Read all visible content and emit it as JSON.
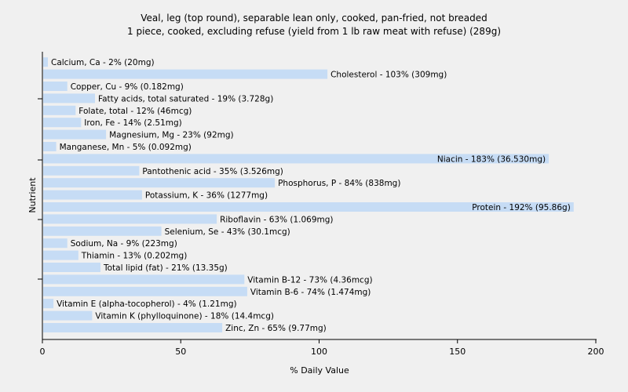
{
  "chart_data": {
    "type": "bar",
    "orientation": "horizontal",
    "title": "Veal, leg (top round), separable lean only, cooked, pan-fried, not breaded",
    "subtitle": "1 piece, cooked, excluding refuse (yield from 1 lb raw meat with refuse) (289g)",
    "xlabel": "% Daily Value",
    "ylabel": "Nutrient",
    "xlim": [
      0,
      200
    ],
    "xticks": [
      "0",
      "50",
      "100",
      "150",
      "200"
    ],
    "grid": false,
    "bar_color": "#c6dcf5",
    "categories": [
      "Calcium, Ca",
      "Cholesterol",
      "Copper, Cu",
      "Fatty acids, total saturated",
      "Folate, total",
      "Iron, Fe",
      "Magnesium, Mg",
      "Manganese, Mn",
      "Niacin",
      "Pantothenic acid",
      "Phosphorus, P",
      "Potassium, K",
      "Protein",
      "Riboflavin",
      "Selenium, Se",
      "Sodium, Na",
      "Thiamin",
      "Total lipid (fat)",
      "Vitamin B-12",
      "Vitamin B-6",
      "Vitamin E (alpha-tocopherol)",
      "Vitamin K (phylloquinone)",
      "Zinc, Zn"
    ],
    "values": [
      2,
      103,
      9,
      19,
      12,
      14,
      23,
      5,
      183,
      35,
      84,
      36,
      192,
      63,
      43,
      9,
      13,
      21,
      73,
      74,
      4,
      18,
      65
    ],
    "labels": [
      "Calcium, Ca - 2% (20mg)",
      "Cholesterol - 103% (309mg)",
      "Copper, Cu - 9% (0.182mg)",
      "Fatty acids, total saturated - 19% (3.728g)",
      "Folate, total - 12% (46mcg)",
      "Iron, Fe - 14% (2.51mg)",
      "Magnesium, Mg - 23% (92mg)",
      "Manganese, Mn - 5% (0.092mg)",
      "Niacin - 183% (36.530mg)",
      "Pantothenic acid - 35% (3.526mg)",
      "Phosphorus, P - 84% (838mg)",
      "Potassium, K - 36% (1277mg)",
      "Protein - 192% (95.86g)",
      "Riboflavin - 63% (1.069mg)",
      "Selenium, Se - 43% (30.1mcg)",
      "Sodium, Na - 9% (223mg)",
      "Thiamin - 13% (0.202mg)",
      "Total lipid (fat) - 21% (13.35g)",
      "Vitamin B-12 - 73% (4.36mcg)",
      "Vitamin B-6 - 74% (1.474mg)",
      "Vitamin E (alpha-tocopherol) - 4% (1.21mg)",
      "Vitamin K (phylloquinone) - 18% (14.4mcg)",
      "Zinc, Zn - 65% (9.77mg)"
    ]
  }
}
